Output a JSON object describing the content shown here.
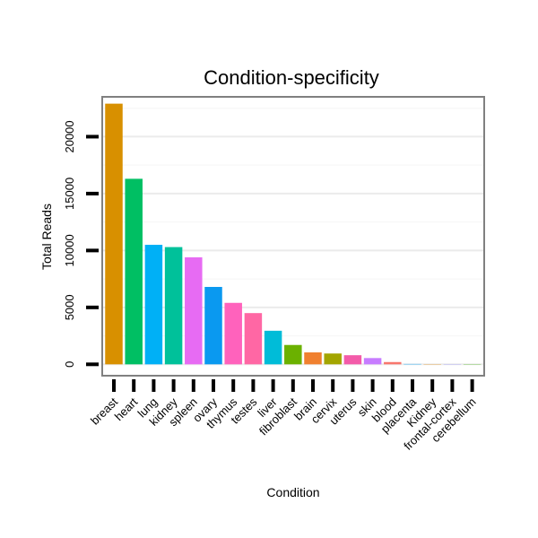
{
  "chart_data": {
    "type": "bar",
    "title": "Condition-specificity",
    "xlabel": "Condition",
    "ylabel": "Total Reads",
    "categories": [
      "breast",
      "heart",
      "lung",
      "kidney",
      "spleen",
      "ovary",
      "thymus",
      "testes",
      "liver",
      "fibroblast",
      "brain",
      "cervix",
      "uterus",
      "skin",
      "blood",
      "placenta",
      "Kidney",
      "frontal-cortex",
      "cerebellum"
    ],
    "values": [
      22900,
      16300,
      10500,
      10300,
      9400,
      6800,
      5400,
      4500,
      2950,
      1700,
      1050,
      950,
      800,
      550,
      200,
      30,
      20,
      15,
      10
    ],
    "colors": [
      "#D89000",
      "#00BF63",
      "#00B0F6",
      "#00C19A",
      "#E76BF3",
      "#0A99F0",
      "#FF62BC",
      "#FF67A4",
      "#00BCD8",
      "#6BB100",
      "#F0802F",
      "#A3A500",
      "#F35BA9",
      "#C77CFF",
      "#F8766D",
      "#00A9FF",
      "#E58700",
      "#9590FF",
      "#39B600"
    ],
    "yticks": [
      0,
      5000,
      10000,
      15000,
      20000
    ],
    "ylim": [
      -1000,
      23500
    ],
    "grid": true
  }
}
